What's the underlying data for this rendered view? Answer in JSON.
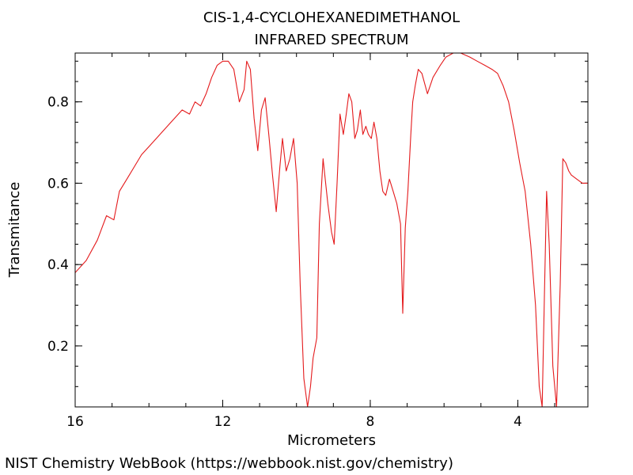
{
  "chart_data": {
    "type": "line",
    "title": "CIS-1,4-CYCLOHEXANEDIMETHANOL",
    "subtitle": "INFRARED SPECTRUM",
    "xlabel": "Micrometers",
    "ylabel": "Transmitance",
    "xlim": [
      16,
      2.1
    ],
    "ylim": [
      0.05,
      0.92
    ],
    "x_ticks": [
      16,
      12,
      8,
      4
    ],
    "y_ticks": [
      0.2,
      0.4,
      0.6,
      0.8
    ],
    "grid": false,
    "line_color": "#e41a1c",
    "series": [
      {
        "x": [
          16.0,
          15.7,
          15.4,
          15.15,
          14.95,
          14.8,
          14.6,
          14.4,
          14.2,
          14.0,
          13.7,
          13.4,
          13.1,
          12.9,
          12.75,
          12.6,
          12.45,
          12.3,
          12.15,
          12.0,
          11.85,
          11.7,
          11.55,
          11.42,
          11.35,
          11.25,
          11.15,
          11.05,
          10.95,
          10.85,
          10.75,
          10.65,
          10.55,
          10.45,
          10.38,
          10.28,
          10.18,
          10.08,
          9.98,
          9.9,
          9.8,
          9.7,
          9.62,
          9.55,
          9.45,
          9.38,
          9.28,
          9.15,
          9.05,
          8.98,
          8.9,
          8.82,
          8.73,
          8.65,
          8.58,
          8.5,
          8.42,
          8.35,
          8.27,
          8.2,
          8.12,
          8.05,
          7.97,
          7.9,
          7.82,
          7.74,
          7.66,
          7.58,
          7.48,
          7.38,
          7.28,
          7.18,
          7.12,
          7.05,
          6.98,
          6.9,
          6.85,
          6.78,
          6.7,
          6.6,
          6.45,
          6.3,
          6.1,
          5.95,
          5.75,
          5.55,
          5.3,
          5.1,
          4.9,
          4.7,
          4.55,
          4.4,
          4.25,
          4.1,
          3.95,
          3.8,
          3.65,
          3.52,
          3.42,
          3.34,
          3.28,
          3.22,
          3.15,
          3.05,
          2.95,
          2.85,
          2.78,
          2.7,
          2.62,
          2.55,
          2.4,
          2.25,
          2.1
        ],
        "y": [
          0.38,
          0.41,
          0.46,
          0.52,
          0.51,
          0.58,
          0.61,
          0.64,
          0.67,
          0.69,
          0.72,
          0.75,
          0.78,
          0.77,
          0.8,
          0.79,
          0.82,
          0.86,
          0.89,
          0.9,
          0.9,
          0.88,
          0.8,
          0.83,
          0.9,
          0.88,
          0.76,
          0.68,
          0.78,
          0.81,
          0.72,
          0.62,
          0.53,
          0.64,
          0.71,
          0.63,
          0.66,
          0.71,
          0.6,
          0.35,
          0.12,
          0.05,
          0.1,
          0.17,
          0.22,
          0.5,
          0.66,
          0.55,
          0.48,
          0.45,
          0.6,
          0.77,
          0.72,
          0.77,
          0.82,
          0.8,
          0.71,
          0.73,
          0.78,
          0.72,
          0.74,
          0.72,
          0.71,
          0.75,
          0.71,
          0.63,
          0.58,
          0.57,
          0.61,
          0.58,
          0.55,
          0.5,
          0.28,
          0.49,
          0.58,
          0.72,
          0.8,
          0.84,
          0.88,
          0.87,
          0.82,
          0.86,
          0.89,
          0.91,
          0.92,
          0.92,
          0.91,
          0.9,
          0.89,
          0.88,
          0.87,
          0.84,
          0.8,
          0.73,
          0.65,
          0.58,
          0.45,
          0.3,
          0.1,
          0.05,
          0.32,
          0.58,
          0.45,
          0.15,
          0.05,
          0.35,
          0.66,
          0.65,
          0.63,
          0.62,
          0.61,
          0.6,
          0.6
        ]
      }
    ]
  },
  "footer": {
    "credit": "NIST Chemistry WebBook (https://webbook.nist.gov/chemistry)"
  }
}
